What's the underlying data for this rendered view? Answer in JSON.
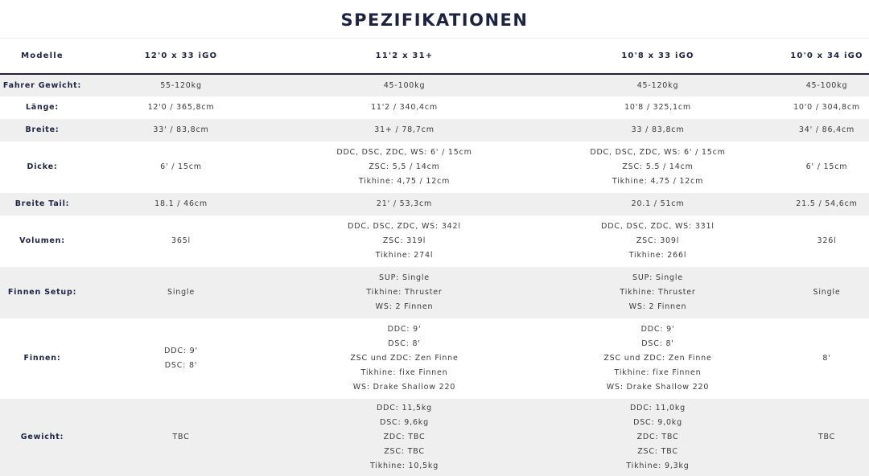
{
  "title": "SPEZIFIKATIONEN",
  "columns": [
    "Modelle",
    "12'0 x 33 iGO",
    "11'2 x 31+",
    "10'8 x 33 iGO",
    "10'0 x 34 iGO"
  ],
  "rows": [
    {
      "label": "Fahrer Gewicht:",
      "cells": [
        [
          "55-120kg"
        ],
        [
          "45-100kg"
        ],
        [
          "45-120kg"
        ],
        [
          "45-100kg"
        ]
      ]
    },
    {
      "label": "Länge:",
      "cells": [
        [
          "12'0 / 365,8cm"
        ],
        [
          "11'2 / 340,4cm"
        ],
        [
          "10'8 / 325,1cm"
        ],
        [
          "10'0 / 304,8cm"
        ]
      ]
    },
    {
      "label": "Breite:",
      "cells": [
        [
          "33' / 83,8cm"
        ],
        [
          "31+ / 78,7cm"
        ],
        [
          "33 / 83,8cm"
        ],
        [
          "34' / 86,4cm"
        ]
      ]
    },
    {
      "label": "Dicke:",
      "cells": [
        [
          "6' / 15cm"
        ],
        [
          "DDC, DSC, ZDC, WS: 6' / 15cm",
          "ZSC: 5,5 / 14cm",
          "Tikhine: 4,75 / 12cm"
        ],
        [
          "DDC, DSC, ZDC, WS: 6' / 15cm",
          "ZSC: 5.5 / 14cm",
          "Tikhine: 4,75 / 12cm"
        ],
        [
          "6' / 15cm"
        ]
      ]
    },
    {
      "label": "Breite Tail:",
      "cells": [
        [
          "18.1 / 46cm"
        ],
        [
          "21' / 53,3cm"
        ],
        [
          "20.1 / 51cm"
        ],
        [
          "21.5 / 54,6cm"
        ]
      ]
    },
    {
      "label": "Volumen:",
      "cells": [
        [
          "365l"
        ],
        [
          "DDC, DSC, ZDC, WS: 342l",
          "ZSC: 319l",
          "Tikhine: 274l"
        ],
        [
          "DDC, DSC, ZDC, WS: 331l",
          "ZSC: 309l",
          "Tikhine: 266l"
        ],
        [
          "326l"
        ]
      ]
    },
    {
      "label": "Finnen Setup:",
      "cells": [
        [
          "Single"
        ],
        [
          "SUP: Single",
          "Tikhine: Thruster",
          "WS: 2 Finnen"
        ],
        [
          "SUP: Single",
          "Tikhine: Thruster",
          "WS: 2 Finnen"
        ],
        [
          "Single"
        ]
      ]
    },
    {
      "label": "Finnen:",
      "cells": [
        [
          "DDC: 9'",
          "DSC: 8'"
        ],
        [
          "DDC: 9'",
          "DSC: 8'",
          "ZSC und ZDC: Zen Finne",
          "Tikhine: fixe Finnen",
          "WS: Drake Shallow 220"
        ],
        [
          "DDC: 9'",
          "DSC: 8'",
          "ZSC und ZDC: Zen Finne",
          "Tikhine: fixe Finnen",
          "WS: Drake Shallow 220"
        ],
        [
          "8'"
        ]
      ]
    },
    {
      "label": "Gewicht:",
      "cells": [
        [
          "TBC"
        ],
        [
          "DDC: 11,5kg",
          "DSC: 9,6kg",
          "ZDC: TBC",
          "ZSC: TBC",
          "Tikhine: 10,5kg"
        ],
        [
          "DDC: 11,0kg",
          "DSC: 9,0kg",
          "ZDC: TBC",
          "ZSC: TBC",
          "Tikhine: 9,3kg"
        ],
        [
          "TBC"
        ]
      ]
    }
  ]
}
